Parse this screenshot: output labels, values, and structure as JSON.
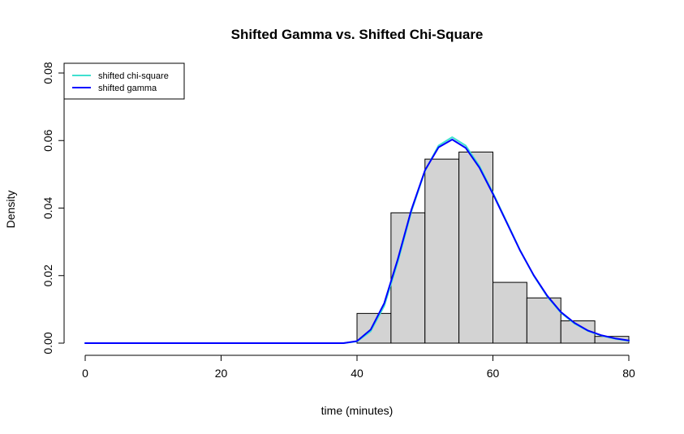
{
  "chart_data": {
    "type": "histogram",
    "title": "Shifted Gamma vs. Shifted Chi-Square",
    "xlabel": "time (minutes)",
    "ylabel": "Density",
    "xlim": [
      0,
      80
    ],
    "ylim": [
      0,
      0.08
    ],
    "x_ticks": [
      "0",
      "20",
      "40",
      "60",
      "80"
    ],
    "y_ticks": [
      "0.00",
      "0.02",
      "0.04",
      "0.06",
      "0.08"
    ],
    "grid": false,
    "legend_position": "top-left",
    "bar_color": "#d3d3d3",
    "bins": [
      {
        "start": 40,
        "end": 45,
        "density": 0.0088
      },
      {
        "start": 45,
        "end": 50,
        "density": 0.0386
      },
      {
        "start": 50,
        "end": 55,
        "density": 0.0545
      },
      {
        "start": 55,
        "end": 60,
        "density": 0.0566
      },
      {
        "start": 60,
        "end": 65,
        "density": 0.018
      },
      {
        "start": 65,
        "end": 70,
        "density": 0.0134
      },
      {
        "start": 70,
        "end": 75,
        "density": 0.0066
      },
      {
        "start": 75,
        "end": 80,
        "density": 0.002
      }
    ],
    "series": [
      {
        "name": "shifted chi-square",
        "color": "#40e0d0",
        "x": [
          0,
          10,
          20,
          30,
          38,
          40,
          42,
          44,
          46,
          48,
          50,
          52,
          54,
          56,
          58,
          60,
          62,
          64,
          66,
          68,
          70,
          72,
          74,
          76,
          78,
          80
        ],
        "y": [
          0,
          0,
          0,
          0,
          0,
          0.0005,
          0.0035,
          0.011,
          0.024,
          0.039,
          0.051,
          0.0585,
          0.061,
          0.0585,
          0.0525,
          0.0445,
          0.036,
          0.0275,
          0.02,
          0.0138,
          0.009,
          0.0058,
          0.0036,
          0.0022,
          0.0013,
          0.0007
        ]
      },
      {
        "name": "shifted gamma",
        "color": "#0000ff",
        "x": [
          0,
          10,
          20,
          30,
          38,
          40,
          42,
          44,
          46,
          48,
          50,
          52,
          54,
          56,
          58,
          60,
          62,
          64,
          66,
          68,
          70,
          72,
          74,
          76,
          78,
          80
        ],
        "y": [
          0,
          0,
          0,
          0,
          0,
          0.0006,
          0.004,
          0.0118,
          0.0248,
          0.0395,
          0.0512,
          0.058,
          0.0603,
          0.0578,
          0.052,
          0.0442,
          0.0358,
          0.0274,
          0.0201,
          0.014,
          0.0092,
          0.006,
          0.0037,
          0.0023,
          0.0014,
          0.0008
        ]
      }
    ]
  }
}
